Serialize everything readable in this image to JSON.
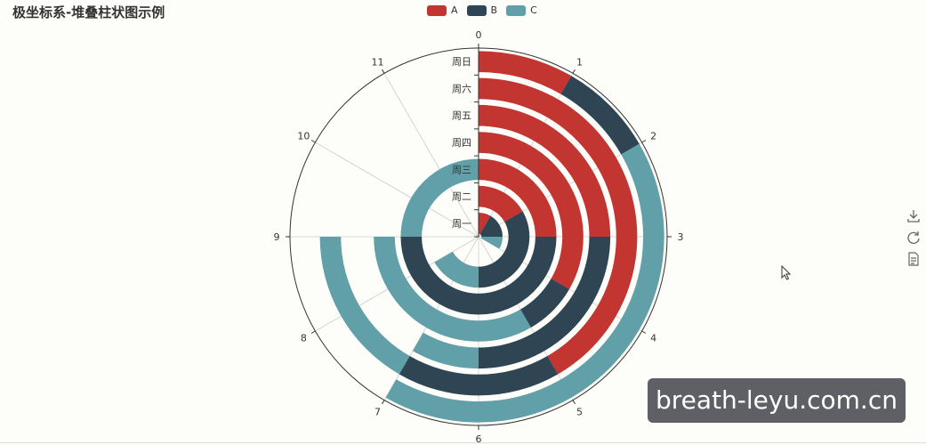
{
  "page_title": "极坐标系-堆叠柱状图示例",
  "legend": [
    {
      "name": "A",
      "color": "#c23531"
    },
    {
      "name": "B",
      "color": "#2f4554"
    },
    {
      "name": "C",
      "color": "#61a0a8"
    }
  ],
  "toolbox": [
    "download-icon",
    "restore-icon",
    "data-view-icon"
  ],
  "watermark": "breath-leyu.com.cn",
  "chart_data": {
    "type": "bar",
    "coordinate": "polar",
    "stacked": true,
    "categories": [
      "周一",
      "周二",
      "周三",
      "周四",
      "周五",
      "周六",
      "周日"
    ],
    "angle_max": 12,
    "angle_ticks": [
      "0",
      "1",
      "2",
      "3",
      "4",
      "5",
      "6",
      "7",
      "8",
      "9",
      "10",
      "11"
    ],
    "series": [
      {
        "name": "A",
        "color": "#c23531",
        "values": [
          1,
          2,
          3,
          4,
          3,
          5,
          1
        ]
      },
      {
        "name": "B",
        "color": "#2f4554",
        "values": [
          2,
          4,
          6,
          1,
          3,
          2,
          1
        ]
      },
      {
        "name": "C",
        "color": "#61a0a8",
        "values": [
          1,
          2,
          3,
          4,
          1,
          2,
          5
        ]
      }
    ]
  }
}
